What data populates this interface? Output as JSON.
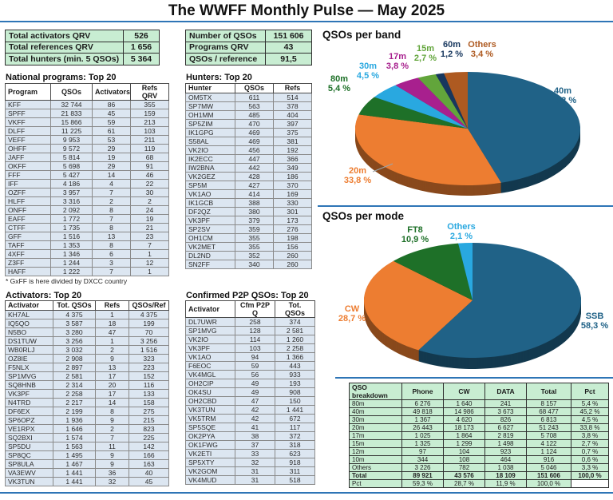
{
  "title": "The WWFF Monthly Pulse — May 2025",
  "summary_left": {
    "rows": [
      [
        "Total activators QRV",
        "526"
      ],
      [
        "Total references QRV",
        "1 656"
      ],
      [
        "Total hunters (min. 5 QSOs)",
        "5 364"
      ]
    ]
  },
  "summary_right": {
    "rows": [
      [
        "Number of QSOs",
        "151 606"
      ],
      [
        "Programs QRV",
        "43"
      ],
      [
        "QSOs / reference",
        "91,5"
      ]
    ]
  },
  "national_programs": {
    "title": "National programs: Top 20",
    "headers": [
      "Program",
      "QSOs",
      "Activators",
      "Refs QRV"
    ],
    "rows": [
      [
        "KFF",
        "32 744",
        "86",
        "355"
      ],
      [
        "SPFF",
        "21 833",
        "45",
        "159"
      ],
      [
        "VKFF",
        "15 866",
        "59",
        "213"
      ],
      [
        "DLFF",
        "11 225",
        "61",
        "103"
      ],
      [
        "VEFF",
        "9 953",
        "53",
        "211"
      ],
      [
        "OHFF",
        "9 572",
        "29",
        "119"
      ],
      [
        "JAFF",
        "5 814",
        "19",
        "68"
      ],
      [
        "OKFF",
        "5 698",
        "29",
        "91"
      ],
      [
        "FFF",
        "5 427",
        "14",
        "46"
      ],
      [
        "IFF",
        "4 186",
        "4",
        "22"
      ],
      [
        "OZFF",
        "3 957",
        "7",
        "30"
      ],
      [
        "HLFF",
        "3 316",
        "2",
        "2"
      ],
      [
        "ONFF",
        "2 092",
        "8",
        "24"
      ],
      [
        "EAFF",
        "1 772",
        "7",
        "19"
      ],
      [
        "CTFF",
        "1 735",
        "8",
        "21"
      ],
      [
        "GFF",
        "1 516",
        "13",
        "23"
      ],
      [
        "TAFF",
        "1 353",
        "8",
        "7"
      ],
      [
        "4XFF",
        "1 346",
        "6",
        "1"
      ],
      [
        "Z3FF",
        "1 244",
        "3",
        "12"
      ],
      [
        "HAFF",
        "1 222",
        "7",
        "1"
      ]
    ],
    "footnote": "* GxFF is here divided by DXCC country"
  },
  "hunters": {
    "title": "Hunters: Top 20",
    "headers": [
      "Hunter",
      "QSOs",
      "Refs"
    ],
    "rows": [
      [
        "OM5TX",
        "611",
        "514"
      ],
      [
        "SP7MW",
        "563",
        "378"
      ],
      [
        "OH1MM",
        "485",
        "404"
      ],
      [
        "SP5ZIM",
        "470",
        "397"
      ],
      [
        "IK1GPG",
        "469",
        "375"
      ],
      [
        "S58AL",
        "469",
        "381"
      ],
      [
        "VK2IO",
        "456",
        "192"
      ],
      [
        "IK2ECC",
        "447",
        "366"
      ],
      [
        "IW2BNA",
        "442",
        "349"
      ],
      [
        "VK2GEZ",
        "428",
        "186"
      ],
      [
        "SP5M",
        "427",
        "370"
      ],
      [
        "VK1AO",
        "414",
        "169"
      ],
      [
        "IK1GCB",
        "388",
        "330"
      ],
      [
        "DF2QZ",
        "380",
        "301"
      ],
      [
        "VK3PF",
        "379",
        "173"
      ],
      [
        "SP2SV",
        "359",
        "276"
      ],
      [
        "OH1CM",
        "355",
        "198"
      ],
      [
        "VK2MET",
        "355",
        "156"
      ],
      [
        "DL2ND",
        "352",
        "260"
      ],
      [
        "SN2FF",
        "340",
        "260"
      ]
    ]
  },
  "activators": {
    "title": "Activators: Top 20",
    "headers": [
      "Activator",
      "Tot. QSOs",
      "Refs",
      "QSOs/Ref"
    ],
    "rows": [
      [
        "KH7AL",
        "4 375",
        "1",
        "4 375"
      ],
      [
        "IQ5QO",
        "3 587",
        "18",
        "199"
      ],
      [
        "N5BO",
        "3 280",
        "47",
        "70"
      ],
      [
        "DS1TUW",
        "3 256",
        "1",
        "3 256"
      ],
      [
        "WB0RLJ",
        "3 032",
        "2",
        "1 516"
      ],
      [
        "OZ8IE",
        "2 908",
        "9",
        "323"
      ],
      [
        "F5NLX",
        "2 897",
        "13",
        "223"
      ],
      [
        "SP1MVG",
        "2 581",
        "17",
        "152"
      ],
      [
        "SQ8HNB",
        "2 314",
        "20",
        "116"
      ],
      [
        "VK3PF",
        "2 258",
        "17",
        "133"
      ],
      [
        "N4TRD",
        "2 217",
        "14",
        "158"
      ],
      [
        "DF6EX",
        "2 199",
        "8",
        "275"
      ],
      [
        "SP6OPZ",
        "1 936",
        "9",
        "215"
      ],
      [
        "VE1RPX",
        "1 646",
        "2",
        "823"
      ],
      [
        "SQ2BXI",
        "1 574",
        "7",
        "225"
      ],
      [
        "SP5DU",
        "1 563",
        "11",
        "142"
      ],
      [
        "SP8QC",
        "1 495",
        "9",
        "166"
      ],
      [
        "SP8ULA",
        "1 467",
        "9",
        "163"
      ],
      [
        "VA3EWV",
        "1 441",
        "36",
        "40"
      ],
      [
        "VK3TUN",
        "1 441",
        "32",
        "45"
      ]
    ]
  },
  "p2p": {
    "title": "Confirmed P2P QSOs: Top 20",
    "headers": [
      "Activator",
      "Cfm P2P Q",
      "Tot. QSOs"
    ],
    "rows": [
      [
        "DL7UWR",
        "258",
        "374"
      ],
      [
        "SP1MVG",
        "128",
        "2 581"
      ],
      [
        "VK2IO",
        "114",
        "1 260"
      ],
      [
        "VK3PF",
        "103",
        "2 258"
      ],
      [
        "VK1AO",
        "94",
        "1 366"
      ],
      [
        "F6EOC",
        "59",
        "443"
      ],
      [
        "VK4MGL",
        "56",
        "933"
      ],
      [
        "OH2CIP",
        "49",
        "193"
      ],
      [
        "OK4SU",
        "49",
        "908"
      ],
      [
        "OH2CBD",
        "47",
        "150"
      ],
      [
        "VK3TUN",
        "42",
        "1 441"
      ],
      [
        "VK5TRM",
        "42",
        "672"
      ],
      [
        "SP5SQE",
        "41",
        "117"
      ],
      [
        "OK2PYA",
        "38",
        "372"
      ],
      [
        "OK1FWG",
        "37",
        "318"
      ],
      [
        "VK2ETI",
        "33",
        "623"
      ],
      [
        "SP5XTY",
        "32",
        "918"
      ],
      [
        "VK2GOM",
        "31",
        "311"
      ],
      [
        "VK4MUD",
        "31",
        "518"
      ]
    ]
  },
  "chart_data": [
    {
      "type": "pie",
      "title": "QSOs per band",
      "style": "3d-pie",
      "legend_position": "labels-around-slices",
      "slices": [
        {
          "label": "40m",
          "pct": 45.2,
          "display": "45,2 %",
          "color": "#206287",
          "label_pos": [
            305,
            65
          ]
        },
        {
          "label": "20m",
          "pct": 33.8,
          "display": "33,8 %",
          "color": "#ED7D31",
          "label_pos": [
            48,
            165
          ],
          "leader": [
            67,
            160,
            92,
            150
          ]
        },
        {
          "label": "80m",
          "pct": 5.4,
          "display": "5,4 %",
          "color": "#1E7028",
          "label_pos": [
            25,
            50
          ]
        },
        {
          "label": "30m",
          "pct": 4.5,
          "display": "4,5 %",
          "color": "#29A8E0",
          "label_pos": [
            61,
            34
          ]
        },
        {
          "label": "17m",
          "pct": 3.8,
          "display": "3,8 %",
          "color": "#A8208E",
          "label_pos": [
            98,
            22
          ]
        },
        {
          "label": "15m",
          "pct": 2.7,
          "display": "2,7 %",
          "color": "#62A53B",
          "label_pos": [
            133,
            12
          ]
        },
        {
          "label": "60m",
          "pct": 1.2,
          "display": "1,2 %",
          "color": "#17375E",
          "label_pos": [
            166,
            7
          ]
        },
        {
          "label": "Others",
          "pct": 3.4,
          "display": "3,4 %",
          "color": "#AE5A21",
          "label_pos": [
            204,
            7
          ]
        }
      ]
    },
    {
      "type": "pie",
      "title": "QSOs per mode",
      "style": "3d-pie",
      "legend_position": "labels-around-slices",
      "slices": [
        {
          "label": "SSB",
          "pct": 58.3,
          "display": "58,3 %",
          "color": "#206287",
          "label_pos": [
            345,
            130
          ]
        },
        {
          "label": "CW",
          "pct": 28.7,
          "display": "28,7 %",
          "color": "#ED7D31",
          "label_pos": [
            41,
            121
          ]
        },
        {
          "label": "FT8",
          "pct": 10.9,
          "display": "10,9 %",
          "color": "#1E7028",
          "label_pos": [
            120,
            22
          ]
        },
        {
          "label": "Others",
          "pct": 2.1,
          "display": "2,1 %",
          "color": "#29A8E0",
          "label_pos": [
            178,
            18
          ]
        }
      ]
    }
  ],
  "breakdown": {
    "headers": [
      "QSO breakdown",
      "Phone",
      "CW",
      "DATA",
      "Total",
      "Pct"
    ],
    "rows": [
      [
        "80m",
        "6 276",
        "1 640",
        "241",
        "8 157",
        "5,4 %"
      ],
      [
        "40m",
        "49 818",
        "14 986",
        "3 673",
        "68 477",
        "45,2 %"
      ],
      [
        "30m",
        "1 367",
        "4 620",
        "826",
        "6 813",
        "4,5 %"
      ],
      [
        "20m",
        "26 443",
        "18 173",
        "6 627",
        "51 243",
        "33,8 %"
      ],
      [
        "17m",
        "1 025",
        "1 864",
        "2 819",
        "5 708",
        "3,8 %"
      ],
      [
        "15m",
        "1 325",
        "1 299",
        "1 498",
        "4 122",
        "2,7 %"
      ],
      [
        "12m",
        "97",
        "104",
        "923",
        "1 124",
        "0,7 %"
      ],
      [
        "10m",
        "344",
        "108",
        "464",
        "916",
        "0,6 %"
      ],
      [
        "Others",
        "3 226",
        "782",
        "1 038",
        "5 046",
        "3,3 %"
      ],
      [
        "Total",
        "89 921",
        "43 576",
        "18 109",
        "151 606",
        "100,0 %"
      ],
      [
        "Pct",
        "59,3 %",
        "28,7 %",
        "11,9 %",
        "100,0 %",
        ""
      ]
    ]
  }
}
